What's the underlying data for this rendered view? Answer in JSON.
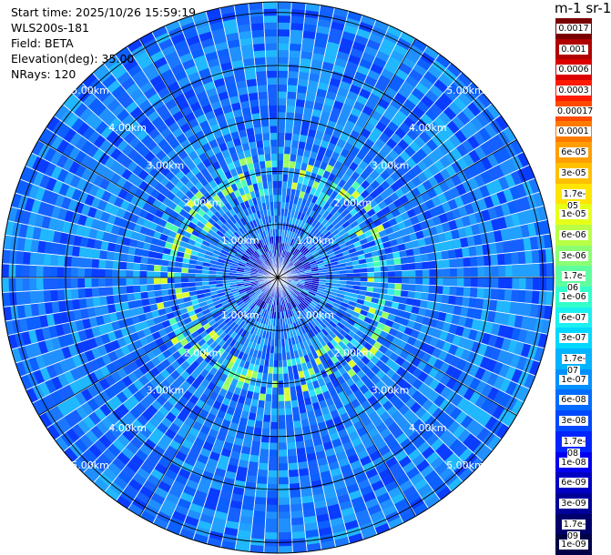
{
  "header": {
    "start_time": "Start time: 2025/10/26 15:59:19",
    "instrument": "WLS200s-181",
    "field": "Field: BETA",
    "elevation": "Elevation(deg): 35.00",
    "nrays": "NRays: 120"
  },
  "colorbar": {
    "title": "m-1 sr-1",
    "labels": [
      "0.0017",
      "0.001",
      "0.0006",
      "0.0003",
      "0.00017",
      "0.0001",
      "6e-05",
      "3e-05",
      "1.7e-05",
      "1e-05",
      "6e-06",
      "3e-06",
      "1.7e-06",
      "1e-06",
      "6e-07",
      "3e-07",
      "1.7e-07",
      "1e-07",
      "6e-08",
      "3e-08",
      "1.7e-08",
      "1e-08",
      "6e-09",
      "3e-09",
      "1.7e-09",
      "1e-09"
    ],
    "colors": [
      "#7a0000",
      "#b00000",
      "#dc0000",
      "#ff1a00",
      "#ff4a00",
      "#ff7a00",
      "#ff9e00",
      "#ffc000",
      "#ffe400",
      "#e6ff1a",
      "#b8ff46",
      "#8cff73",
      "#5fffa0",
      "#33ffcc",
      "#1af0f0",
      "#00d8ff",
      "#00b4ff",
      "#0090ff",
      "#006cff",
      "#0048ff",
      "#0024ff",
      "#0000ee",
      "#0000c4",
      "#000098",
      "#00006c",
      "#000048"
    ]
  },
  "chart_data": {
    "type": "heatmap",
    "plot": "PPI polar scan",
    "nrays": 120,
    "elevation_deg": 35.0,
    "max_range_km": 5.2,
    "range_ring_labels": [
      {
        "range_km": 1.0,
        "label": "1.00km"
      },
      {
        "range_km": 2.0,
        "label": "2.00km"
      },
      {
        "range_km": 3.0,
        "label": "3.00km"
      },
      {
        "range_km": 4.0,
        "label": "4.00km"
      },
      {
        "range_km": 5.0,
        "label": "5.00km"
      }
    ],
    "background_beta_range": [
      "1.7e-08",
      "1e-07"
    ],
    "enhanced_beta_range": [
      "1.7e-07",
      "3e-06"
    ],
    "enhanced_ring_km": [
      1.5,
      2.3
    ],
    "grid": true
  }
}
